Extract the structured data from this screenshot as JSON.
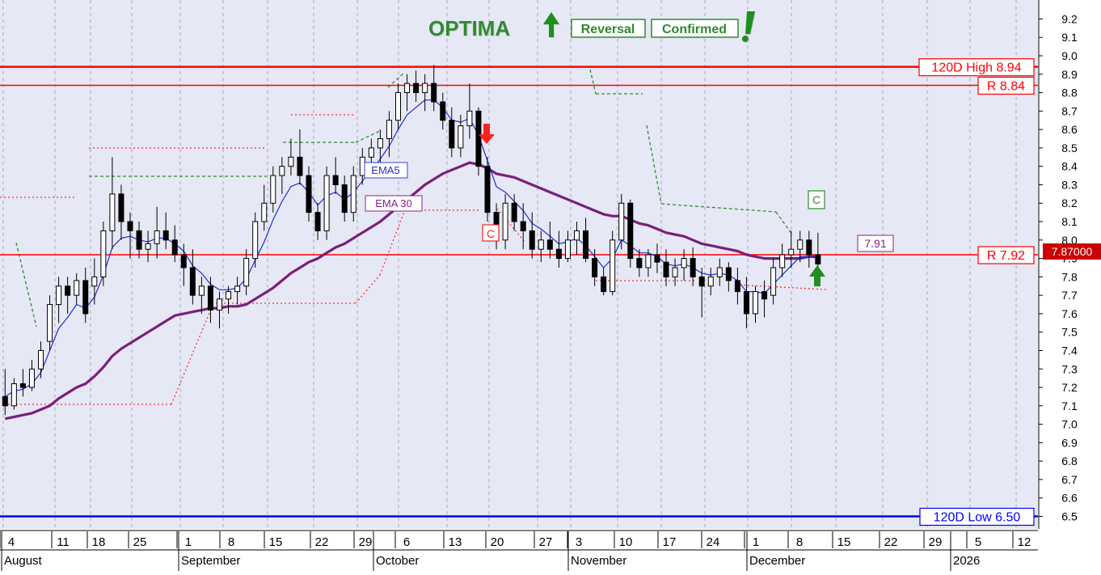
{
  "chart_data": {
    "type": "candlestick",
    "title": "OPTIMA",
    "badges": [
      "Reversal",
      "Confirmed"
    ],
    "ylim": [
      6.4,
      9.2
    ],
    "yticks": [
      "6.5",
      "6.6",
      "6.7",
      "6.8",
      "6.9",
      "7.0",
      "7.1",
      "7.2",
      "7.3",
      "7.4",
      "7.5",
      "7.6",
      "7.7",
      "7.8",
      "7.9",
      "8.0",
      "8.1",
      "8.2",
      "8.3",
      "8.4",
      "8.5",
      "8.6",
      "8.7",
      "8.8",
      "8.9",
      "9.0",
      "9.1",
      "9.2"
    ],
    "xtick_labels": [
      "4",
      "11",
      "18",
      "25",
      "1",
      "8",
      "15",
      "22",
      "29",
      "6",
      "13",
      "20",
      "27",
      "3",
      "10",
      "17",
      "24",
      "1",
      "8",
      "15",
      "22",
      "29",
      "5",
      "12"
    ],
    "month_labels": [
      "August",
      "September",
      "October",
      "November",
      "December",
      "2026"
    ],
    "levels": [
      {
        "label": "120D High 8.94",
        "value": 8.94,
        "color": "#ff0000"
      },
      {
        "label": "R 8.84",
        "value": 8.84,
        "color": "#ff0000"
      },
      {
        "label": "R 7.92",
        "value": 7.92,
        "color": "#ff0000"
      },
      {
        "label": "120D Low 6.50",
        "value": 6.5,
        "color": "#0000ff"
      }
    ],
    "last_price_label": "7.87000",
    "ema30_value_label": "7.91",
    "indicator_labels": {
      "ema5": "EMA5",
      "ema30": "EMA 30"
    },
    "signal_marks": [
      "C",
      "C"
    ],
    "candles": [
      [
        7.15,
        7.3,
        7.05,
        7.1
      ],
      [
        7.1,
        7.25,
        7.08,
        7.22
      ],
      [
        7.22,
        7.3,
        7.15,
        7.2
      ],
      [
        7.2,
        7.35,
        7.18,
        7.3
      ],
      [
        7.3,
        7.45,
        7.25,
        7.4
      ],
      [
        7.45,
        7.7,
        7.4,
        7.65
      ],
      [
        7.65,
        7.8,
        7.55,
        7.75
      ],
      [
        7.75,
        7.8,
        7.6,
        7.7
      ],
      [
        7.7,
        7.82,
        7.65,
        7.78
      ],
      [
        7.78,
        7.85,
        7.55,
        7.6
      ],
      [
        7.75,
        7.9,
        7.65,
        7.8
      ],
      [
        7.8,
        8.1,
        7.75,
        8.05
      ],
      [
        8.05,
        8.45,
        7.95,
        8.25
      ],
      [
        8.25,
        8.3,
        8.0,
        8.1
      ],
      [
        8.1,
        8.15,
        7.9,
        8.05
      ],
      [
        8.05,
        8.1,
        7.9,
        7.95
      ],
      [
        7.95,
        8.05,
        7.88,
        7.98
      ],
      [
        7.98,
        8.18,
        7.9,
        8.05
      ],
      [
        8.05,
        8.15,
        7.95,
        8.0
      ],
      [
        8.0,
        8.08,
        7.88,
        7.92
      ],
      [
        7.92,
        7.98,
        7.75,
        7.85
      ],
      [
        7.85,
        7.95,
        7.65,
        7.7
      ],
      [
        7.7,
        7.8,
        7.6,
        7.75
      ],
      [
        7.75,
        7.8,
        7.55,
        7.62
      ],
      [
        7.62,
        7.72,
        7.52,
        7.68
      ],
      [
        7.68,
        7.75,
        7.6,
        7.72
      ],
      [
        7.72,
        7.8,
        7.65,
        7.75
      ],
      [
        7.75,
        7.95,
        7.7,
        7.9
      ],
      [
        7.9,
        8.15,
        7.85,
        8.1
      ],
      [
        8.1,
        8.3,
        8.05,
        8.2
      ],
      [
        8.2,
        8.4,
        8.15,
        8.35
      ],
      [
        8.35,
        8.45,
        8.25,
        8.4
      ],
      [
        8.4,
        8.55,
        8.35,
        8.45
      ],
      [
        8.45,
        8.6,
        8.3,
        8.35
      ],
      [
        8.35,
        8.4,
        8.1,
        8.15
      ],
      [
        8.15,
        8.2,
        8.0,
        8.05
      ],
      [
        8.05,
        8.4,
        8.0,
        8.35
      ],
      [
        8.35,
        8.45,
        8.25,
        8.3
      ],
      [
        8.3,
        8.35,
        8.1,
        8.15
      ],
      [
        8.15,
        8.4,
        8.1,
        8.35
      ],
      [
        8.35,
        8.5,
        8.3,
        8.45
      ],
      [
        8.45,
        8.55,
        8.35,
        8.5
      ],
      [
        8.5,
        8.6,
        8.4,
        8.55
      ],
      [
        8.55,
        8.7,
        8.45,
        8.65
      ],
      [
        8.65,
        8.85,
        8.6,
        8.8
      ],
      [
        8.8,
        8.9,
        8.7,
        8.85
      ],
      [
        8.85,
        8.92,
        8.75,
        8.8
      ],
      [
        8.8,
        8.9,
        8.7,
        8.85
      ],
      [
        8.85,
        8.95,
        8.7,
        8.75
      ],
      [
        8.75,
        8.8,
        8.6,
        8.65
      ],
      [
        8.65,
        8.72,
        8.45,
        8.5
      ],
      [
        8.5,
        8.68,
        8.45,
        8.62
      ],
      [
        8.62,
        8.85,
        8.55,
        8.7
      ],
      [
        8.7,
        8.72,
        8.35,
        8.4
      ],
      [
        8.4,
        8.45,
        8.1,
        8.15
      ],
      [
        8.15,
        8.2,
        7.95,
        8.0
      ],
      [
        8.0,
        8.25,
        7.95,
        8.2
      ],
      [
        8.2,
        8.25,
        8.05,
        8.1
      ],
      [
        8.1,
        8.2,
        7.95,
        8.05
      ],
      [
        8.05,
        8.15,
        7.9,
        7.95
      ],
      [
        7.95,
        8.05,
        7.88,
        8.0
      ],
      [
        8.0,
        8.1,
        7.9,
        7.95
      ],
      [
        7.95,
        8.05,
        7.85,
        7.9
      ],
      [
        7.9,
        8.05,
        7.88,
        8.0
      ],
      [
        8.0,
        8.1,
        7.92,
        8.05
      ],
      [
        8.05,
        8.12,
        7.88,
        7.9
      ],
      [
        7.9,
        7.95,
        7.75,
        7.8
      ],
      [
        7.8,
        7.85,
        7.7,
        7.72
      ],
      [
        7.72,
        8.05,
        7.7,
        8.0
      ],
      [
        8.0,
        8.25,
        7.95,
        8.2
      ],
      [
        8.2,
        8.22,
        7.85,
        7.9
      ],
      [
        7.9,
        7.95,
        7.8,
        7.85
      ],
      [
        7.85,
        7.95,
        7.8,
        7.92
      ],
      [
        7.92,
        7.98,
        7.82,
        7.88
      ],
      [
        7.88,
        7.95,
        7.75,
        7.8
      ],
      [
        7.8,
        7.9,
        7.75,
        7.85
      ],
      [
        7.85,
        7.95,
        7.78,
        7.9
      ],
      [
        7.9,
        7.96,
        7.75,
        7.8
      ],
      [
        7.8,
        7.85,
        7.58,
        7.75
      ],
      [
        7.75,
        7.85,
        7.7,
        7.8
      ],
      [
        7.8,
        7.9,
        7.75,
        7.85
      ],
      [
        7.85,
        7.88,
        7.72,
        7.78
      ],
      [
        7.78,
        7.85,
        7.65,
        7.72
      ],
      [
        7.72,
        7.8,
        7.52,
        7.6
      ],
      [
        7.6,
        7.75,
        7.55,
        7.72
      ],
      [
        7.72,
        7.78,
        7.58,
        7.68
      ],
      [
        7.7,
        7.9,
        7.65,
        7.85
      ],
      [
        7.85,
        7.98,
        7.8,
        7.92
      ],
      [
        7.92,
        8.05,
        7.85,
        7.95
      ],
      [
        7.95,
        8.05,
        7.88,
        8.0
      ],
      [
        8.0,
        8.05,
        7.85,
        7.92
      ],
      [
        7.92,
        8.04,
        7.82,
        7.87
      ]
    ],
    "ema5": [
      7.15,
      7.18,
      7.19,
      7.22,
      7.28,
      7.4,
      7.52,
      7.58,
      7.65,
      7.63,
      7.69,
      7.81,
      7.96,
      8.01,
      8.02,
      8.0,
      7.99,
      8.01,
      8.01,
      7.98,
      7.94,
      7.86,
      7.82,
      7.76,
      7.73,
      7.73,
      7.74,
      7.79,
      7.89,
      7.99,
      8.11,
      8.21,
      8.29,
      8.31,
      8.26,
      8.19,
      8.24,
      8.26,
      8.22,
      8.26,
      8.32,
      8.38,
      8.44,
      8.51,
      8.6,
      8.68,
      8.72,
      8.76,
      8.76,
      8.72,
      8.65,
      8.64,
      8.66,
      8.57,
      8.43,
      8.29,
      8.26,
      8.21,
      8.16,
      8.09,
      8.06,
      8.02,
      7.98,
      7.99,
      8.01,
      7.97,
      7.91,
      7.85,
      7.9,
      8.0,
      7.97,
      7.93,
      7.93,
      7.91,
      7.87,
      7.86,
      7.87,
      7.85,
      7.82,
      7.81,
      7.82,
      7.81,
      7.78,
      7.72,
      7.72,
      7.71,
      7.76,
      7.81,
      7.86,
      7.91,
      7.91,
      7.9
    ],
    "ema30": [
      7.03,
      7.04,
      7.05,
      7.06,
      7.08,
      7.1,
      7.14,
      7.17,
      7.2,
      7.22,
      7.26,
      7.31,
      7.37,
      7.41,
      7.44,
      7.47,
      7.5,
      7.53,
      7.56,
      7.59,
      7.6,
      7.61,
      7.62,
      7.63,
      7.63,
      7.64,
      7.64,
      7.65,
      7.68,
      7.71,
      7.74,
      7.78,
      7.82,
      7.85,
      7.88,
      7.9,
      7.93,
      7.96,
      7.98,
      8.01,
      8.04,
      8.07,
      8.1,
      8.14,
      8.18,
      8.22,
      8.26,
      8.3,
      8.33,
      8.36,
      8.38,
      8.4,
      8.42,
      8.41,
      8.39,
      8.36,
      8.35,
      8.34,
      8.32,
      8.3,
      8.28,
      8.26,
      8.24,
      8.22,
      8.2,
      8.18,
      8.16,
      8.14,
      8.13,
      8.13,
      8.11,
      8.09,
      8.08,
      8.06,
      8.04,
      8.03,
      8.02,
      8.0,
      7.98,
      7.97,
      7.96,
      7.95,
      7.94,
      7.92,
      7.91,
      7.9,
      7.9,
      7.9,
      7.9,
      7.9,
      7.91,
      7.91
    ]
  }
}
